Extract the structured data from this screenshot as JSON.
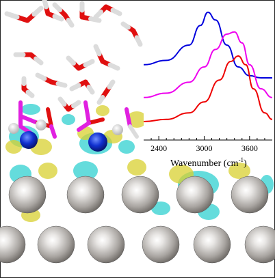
{
  "chart_data": {
    "type": "line",
    "xlabel_main": "Wavenumber (cm",
    "xlabel_sup": "-1",
    "xlabel_close": ")",
    "x_ticks": [
      2400,
      3000,
      3600
    ],
    "x_tick_labels": [
      "2400",
      "3000",
      "3600"
    ],
    "xlim": [
      2200,
      3900
    ],
    "ylabel": "",
    "grid": false,
    "series": [
      {
        "color": "#0000dd",
        "x": [
          2200,
          2500,
          2800,
          2950,
          3050,
          3150,
          3300,
          3450,
          3600,
          3750,
          3900
        ],
        "y": [
          0.52,
          0.56,
          0.7,
          0.88,
          1.0,
          0.93,
          0.7,
          0.5,
          0.42,
          0.4,
          0.4
        ]
      },
      {
        "color": "#ee00ee",
        "x": [
          2200,
          2500,
          2800,
          3000,
          3150,
          3300,
          3400,
          3500,
          3600,
          3750,
          3900
        ],
        "y": [
          0.22,
          0.26,
          0.36,
          0.5,
          0.66,
          0.8,
          0.82,
          0.72,
          0.52,
          0.3,
          0.22
        ]
      },
      {
        "color": "#ee0000",
        "x": [
          2200,
          2500,
          2800,
          3000,
          3200,
          3350,
          3450,
          3550,
          3650,
          3800,
          3900
        ],
        "y": [
          0.0,
          0.02,
          0.08,
          0.18,
          0.38,
          0.55,
          0.6,
          0.52,
          0.3,
          0.08,
          0.02
        ]
      }
    ]
  },
  "scene": {
    "colors": {
      "oxygen": "#e01010",
      "hydrogen": "#f0f0f0",
      "carbon_link": "#e020e0",
      "metal": "#b8b4b0",
      "ion": "#1030d0",
      "iso_pos": "#d8d030",
      "iso_neg": "#30d0d0"
    }
  }
}
